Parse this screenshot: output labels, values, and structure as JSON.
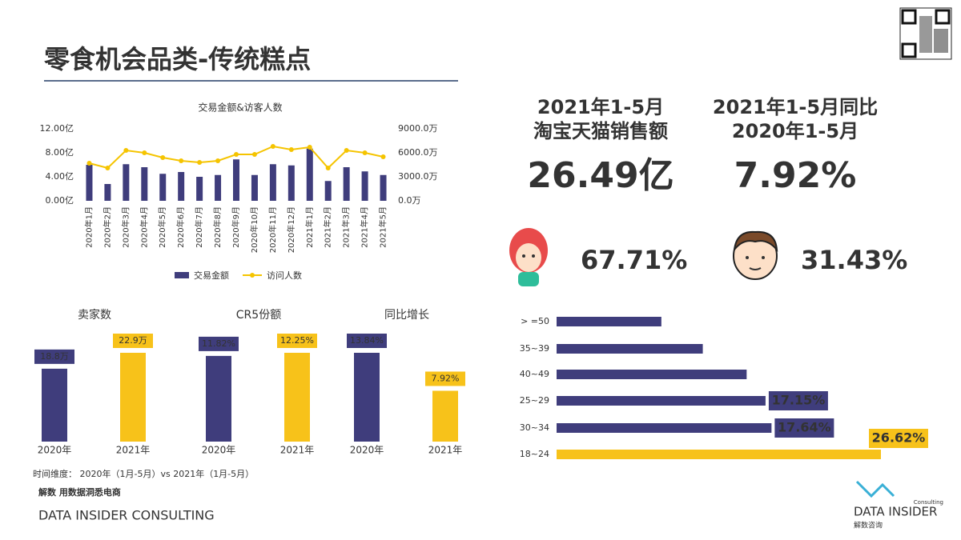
{
  "header": {
    "title": "零食机会品类-传统糕点"
  },
  "kpis": [
    {
      "heading": [
        "2021年1-5月",
        "淘宝天猫销售额"
      ],
      "value": "26.49亿"
    },
    {
      "heading": [
        "2021年1-5月同比",
        "2020年1-5月"
      ],
      "value": "7.92%"
    }
  ],
  "gender": {
    "female": "67.71%",
    "male": "31.43%"
  },
  "footer": {
    "period": "时间维度： 2020年（1月-5月）vs 2021年（1月-5月）",
    "slogan": "解数 用数据洞悉电商",
    "company": "DATA INSIDER CONSULTING"
  },
  "logo": {
    "small": "Consulting",
    "name": "DATA INSIDER",
    "cn": "解数咨询"
  },
  "chart_data": [
    {
      "type": "combo",
      "title": "交易金额&访客人数",
      "categories": [
        "2020年1月",
        "2020年2月",
        "2020年3月",
        "2020年4月",
        "2020年5月",
        "2020年6月",
        "2020年7月",
        "2020年8月",
        "2020年9月",
        "2020年10月",
        "2020年11月",
        "2020年12月",
        "2021年1月",
        "2021年2月",
        "2021年3月",
        "2021年4月",
        "2021年5月"
      ],
      "series": [
        {
          "name": "交易金额",
          "type": "bar",
          "color": "#3f3d7c",
          "values": [
            6.0,
            2.8,
            6.1,
            5.6,
            4.5,
            4.8,
            4.0,
            4.3,
            6.9,
            4.3,
            6.1,
            5.9,
            8.7,
            3.3,
            5.6,
            4.9,
            4.3
          ]
        },
        {
          "name": "访问人数",
          "type": "line",
          "axis": "y2",
          "color": "#f5c400",
          "values": [
            4700,
            4100,
            6300,
            6000,
            5400,
            5000,
            4800,
            5000,
            5800,
            5800,
            6800,
            6400,
            6700,
            4100,
            6300,
            6000,
            5500
          ]
        }
      ],
      "ylim": [
        0,
        12
      ],
      "yticks": [
        {
          "value": 0,
          "label": "0.00亿"
        },
        {
          "value": 4,
          "label": "4.00亿"
        },
        {
          "value": 8,
          "label": "8.00亿"
        },
        {
          "value": 12,
          "label": "12.00亿"
        }
      ],
      "y2lim": [
        0,
        9000
      ],
      "y2ticks": [
        {
          "value": 0,
          "label": "0.0万"
        },
        {
          "value": 3000,
          "label": "3000.0万"
        },
        {
          "value": 6000,
          "label": "6000.0万"
        },
        {
          "value": 9000,
          "label": "9000.0万"
        }
      ],
      "grid": false
    },
    {
      "type": "bar",
      "title": "卖家数",
      "categories": [
        "2020年",
        "2021年"
      ],
      "values": [
        18.8,
        22.9
      ],
      "value_labels": [
        "18.8万",
        "22.9万"
      ],
      "colors": [
        "#3f3d7c",
        "#f7c21a"
      ]
    },
    {
      "type": "bar",
      "title": "CR5份额",
      "categories": [
        "2020年",
        "2021年"
      ],
      "values": [
        11.82,
        12.25
      ],
      "value_labels": [
        "11.82%",
        "12.25%"
      ],
      "colors": [
        "#3f3d7c",
        "#f7c21a"
      ]
    },
    {
      "type": "bar",
      "title": "同比增长",
      "categories": [
        "2020年",
        "2021年"
      ],
      "values": [
        13.84,
        7.92
      ],
      "value_labels": [
        "13.84%",
        "7.92%"
      ],
      "colors": [
        "#3f3d7c",
        "#f7c21a"
      ]
    },
    {
      "type": "barh",
      "categories": [
        "> =50",
        "35~39",
        "40~49",
        "25~29",
        "30~34",
        "18~24"
      ],
      "values": [
        8.6,
        12.0,
        15.6,
        17.15,
        17.64,
        26.62
      ],
      "value_labels": [
        null,
        null,
        null,
        "17.15%",
        "17.64%",
        "26.62%"
      ],
      "colors": [
        "#3f3d7c",
        "#3f3d7c",
        "#3f3d7c",
        "#3f3d7c",
        "#3f3d7c",
        "#f7c21a"
      ]
    }
  ]
}
